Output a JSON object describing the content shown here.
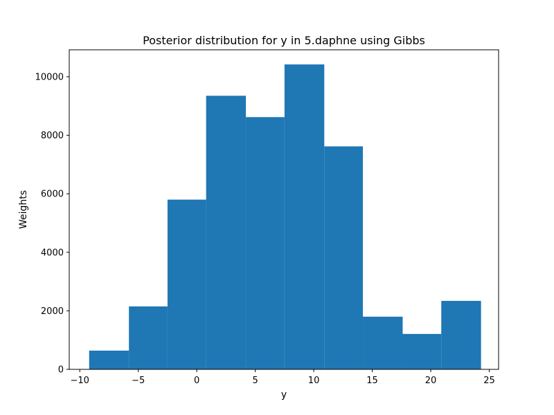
{
  "chart_data": {
    "type": "bar",
    "title": "Posterior distribution for y in 5.daphne using Gibbs",
    "xlabel": "y",
    "ylabel": "Weights",
    "xlim": [
      -10.9,
      25.8
    ],
    "ylim": [
      0,
      10920
    ],
    "xticks": [
      -10,
      -5,
      0,
      5,
      10,
      15,
      20,
      25
    ],
    "yticks": [
      0,
      2000,
      4000,
      6000,
      8000,
      10000
    ],
    "grid": false,
    "bars": [
      {
        "x0": -9.2,
        "x1": -5.8,
        "value": 640
      },
      {
        "x0": -5.8,
        "x1": -2.5,
        "value": 2150
      },
      {
        "x0": -2.5,
        "x1": 0.8,
        "value": 5800
      },
      {
        "x0": 0.8,
        "x1": 4.2,
        "value": 9350
      },
      {
        "x0": 4.2,
        "x1": 7.5,
        "value": 8620
      },
      {
        "x0": 7.5,
        "x1": 10.9,
        "value": 10420
      },
      {
        "x0": 10.9,
        "x1": 14.2,
        "value": 7620
      },
      {
        "x0": 14.2,
        "x1": 17.6,
        "value": 1800
      },
      {
        "x0": 17.6,
        "x1": 20.9,
        "value": 1210
      },
      {
        "x0": 20.9,
        "x1": 24.3,
        "value": 2340
      }
    ],
    "colors": {
      "bar": "#1f77b4"
    }
  }
}
